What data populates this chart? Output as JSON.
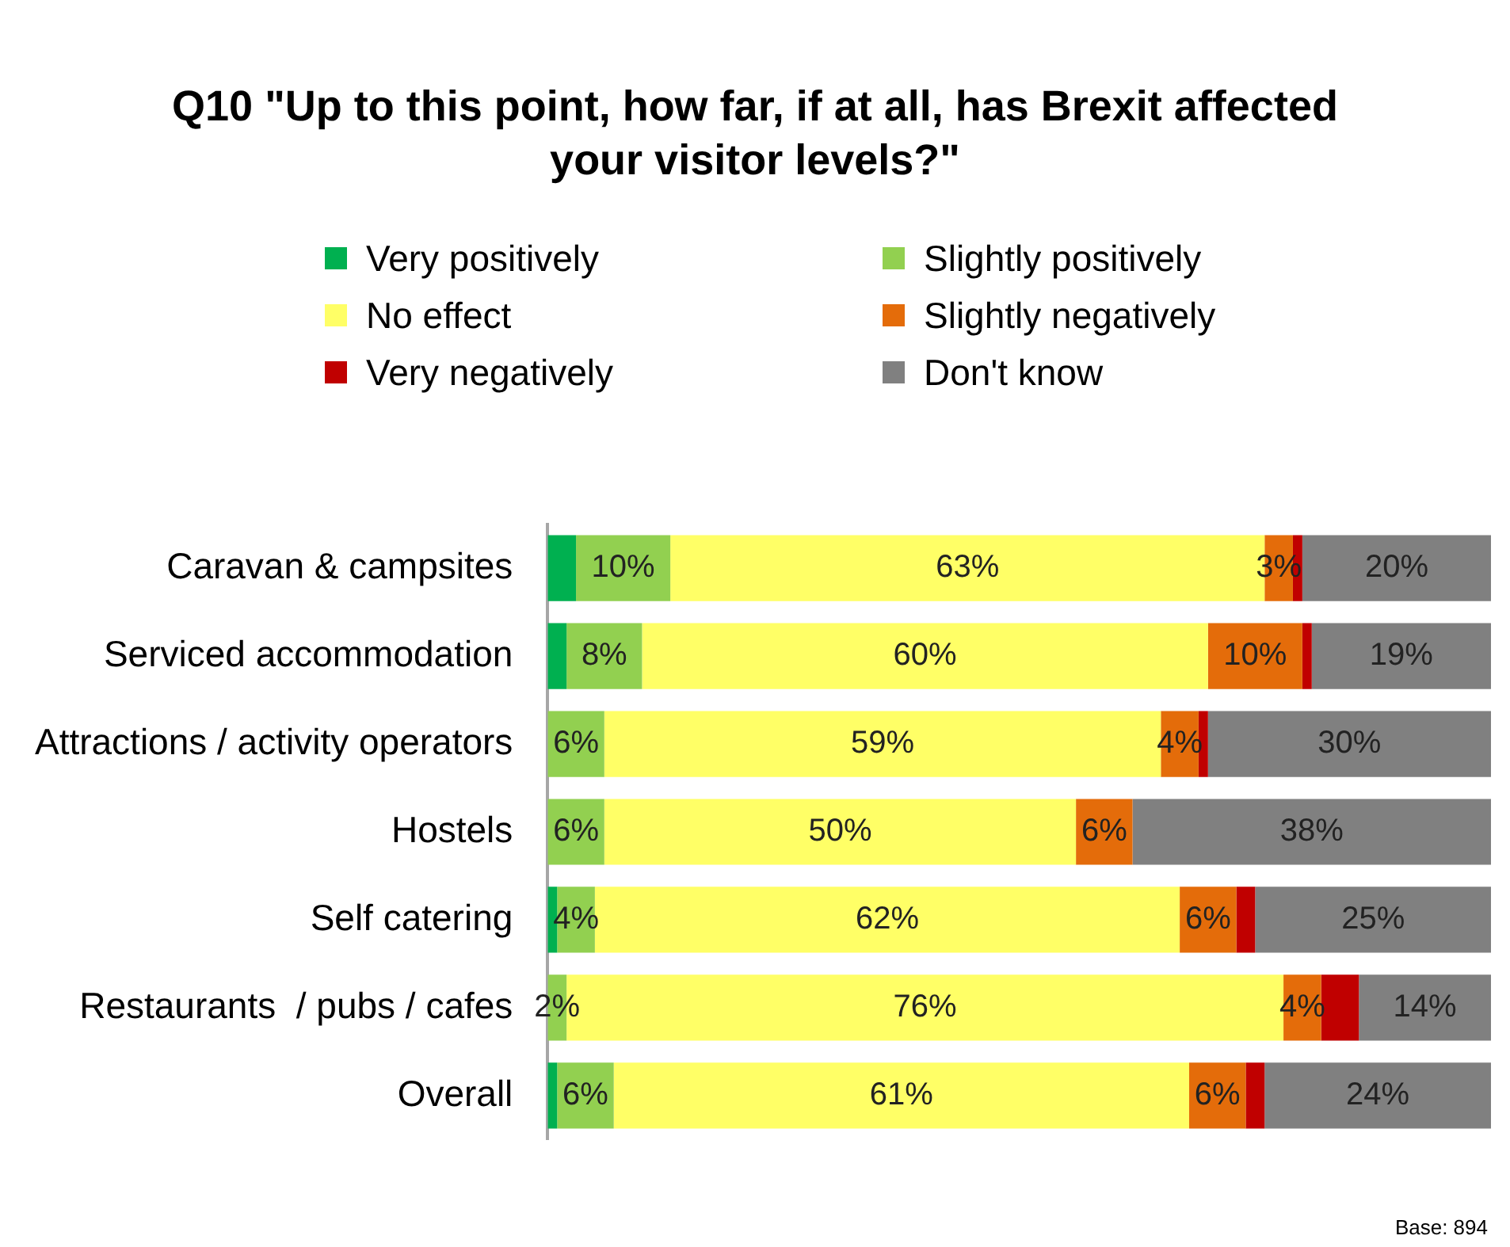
{
  "chart_data": {
    "type": "bar",
    "orientation": "horizontal",
    "stacked": true,
    "title": "Q10 \"Up to this point, how far, if at all, has Brexit affected your visitor levels?\"",
    "categories": [
      "Caravan & campsites",
      "Serviced accommodation",
      "Attractions / activity operators",
      "Hostels",
      "Self catering",
      "Restaurants  / pubs / cafes",
      "Overall"
    ],
    "xlim": [
      0,
      100
    ],
    "tick_labels": "y",
    "grid": false,
    "legend": "top",
    "series": [
      {
        "name": "Very positively",
        "color": "#00b050",
        "values": [
          3,
          2,
          0,
          0,
          1,
          0,
          1
        ],
        "value_labels": [
          null,
          null,
          null,
          null,
          null,
          null,
          null
        ]
      },
      {
        "name": "Slightly positively",
        "color": "#92d050",
        "values": [
          10,
          8,
          6,
          6,
          4,
          2,
          6
        ],
        "value_labels": [
          "10%",
          "8%",
          "6%",
          "6%",
          "4%",
          "2%",
          "6%"
        ]
      },
      {
        "name": "No effect",
        "color": "#ffff66",
        "values": [
          63,
          60,
          59,
          50,
          62,
          76,
          61
        ],
        "value_labels": [
          "63%",
          "60%",
          "59%",
          "50%",
          "62%",
          "76%",
          "61%"
        ]
      },
      {
        "name": "Slightly negatively",
        "color": "#e46c0a",
        "values": [
          3,
          10,
          4,
          6,
          6,
          4,
          6
        ],
        "value_labels": [
          "3%",
          "10%",
          "4%",
          "6%",
          "6%",
          "4%",
          "6%"
        ]
      },
      {
        "name": "Very negatively",
        "color": "#c00000",
        "values": [
          1,
          1,
          1,
          0,
          2,
          4,
          2
        ],
        "value_labels": [
          null,
          null,
          null,
          null,
          null,
          null,
          null
        ]
      },
      {
        "name": "Don't know",
        "color": "#808080",
        "values": [
          20,
          19,
          30,
          38,
          25,
          14,
          24
        ],
        "value_labels": [
          "20%",
          "19%",
          "30%",
          "38%",
          "25%",
          "14%",
          "24%"
        ]
      }
    ],
    "annotations": [
      "Base: 894"
    ]
  }
}
